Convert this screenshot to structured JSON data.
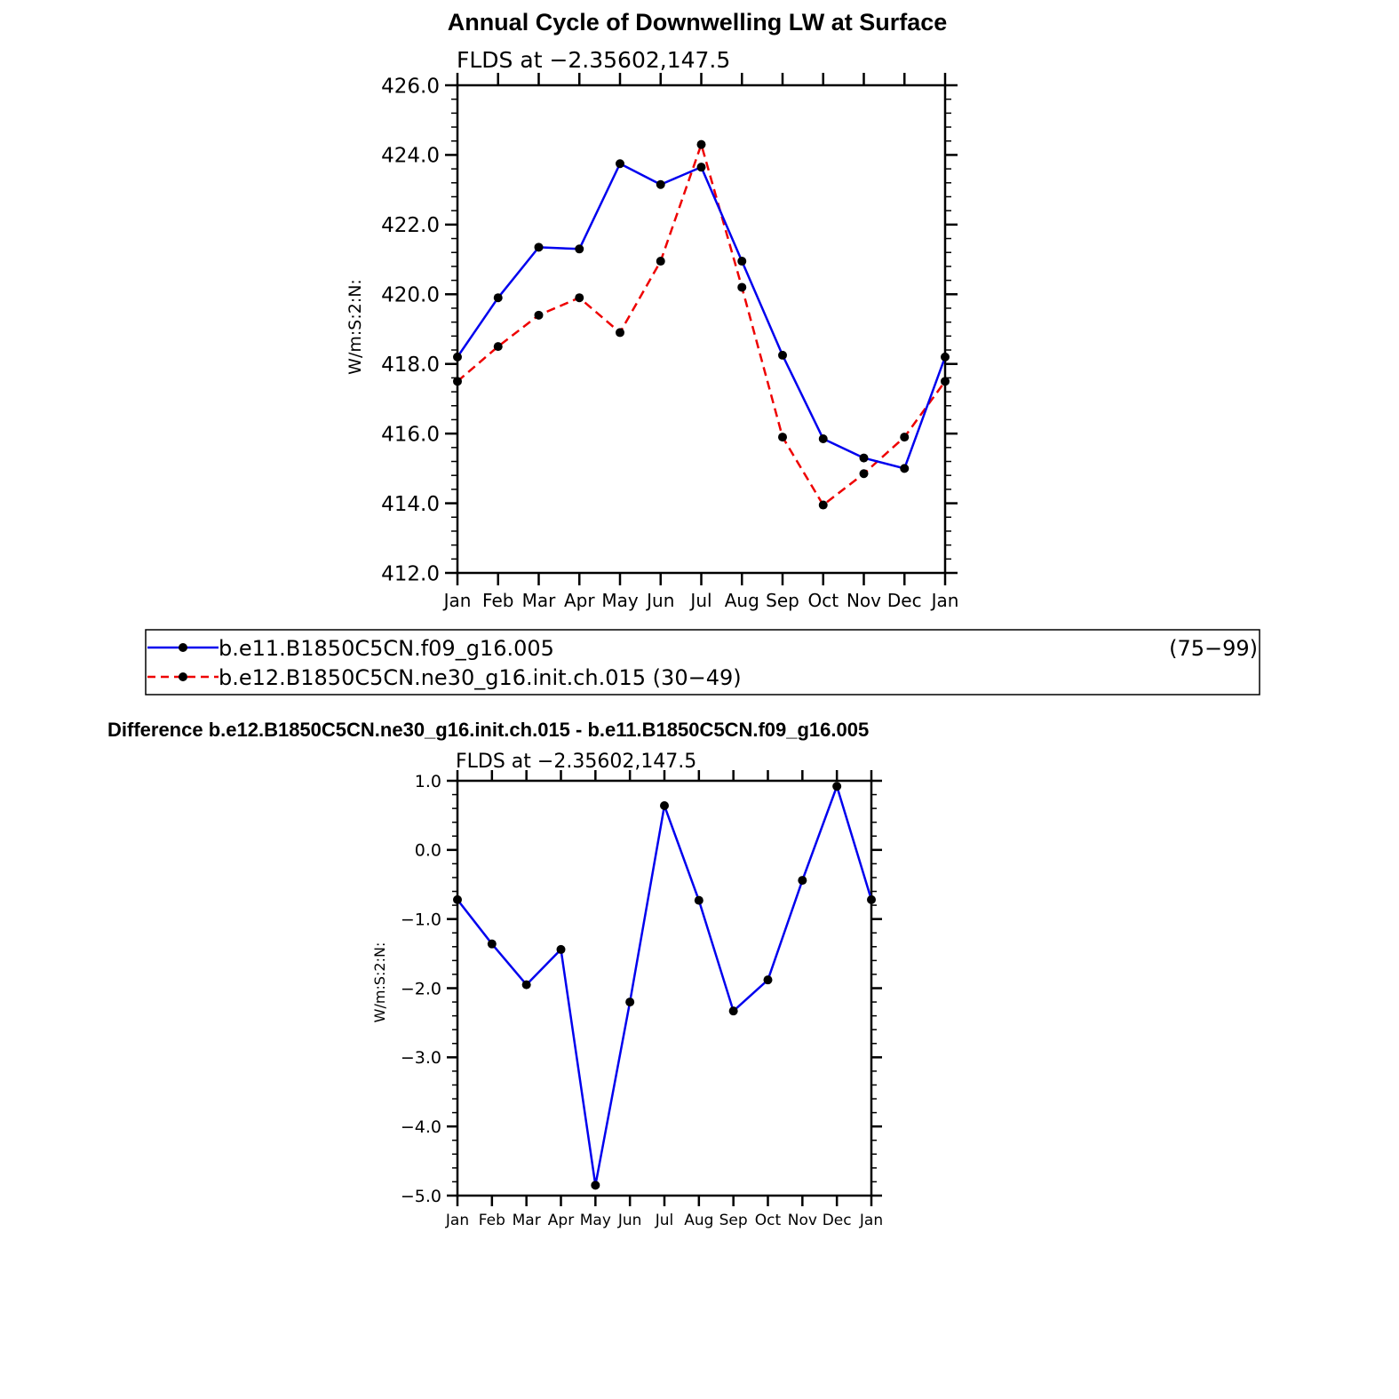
{
  "charts": {
    "top": {
      "title": "Annual Cycle of Downwelling LW at Surface",
      "subtitle": "FLDS at −2.35602,147.5",
      "ylabel": "W/m:S:2:N:"
    },
    "bottom": {
      "title": "Difference b.e12.B1850C5CN.ne30_g16.init.ch.015 - b.e11.B1850C5CN.f09_g16.005",
      "subtitle": "FLDS at −2.35602,147.5",
      "ylabel": "W/m:S:2:N:"
    }
  },
  "legend": {
    "series1_label": "b.e11.B1850C5CN.f09_g16.005",
    "series1_years": "(75−99)",
    "series2_label": "b.e12.B1850C5CN.ne30_g16.init.ch.015 (30−49)"
  },
  "chart_data": [
    {
      "type": "line",
      "title": "Annual Cycle of Downwelling LW at Surface",
      "subtitle": "FLDS at −2.35602,147.5",
      "xlabel": "",
      "ylabel": "W/m:S:2:N:",
      "categories": [
        "Jan",
        "Feb",
        "Mar",
        "Apr",
        "May",
        "Jun",
        "Jul",
        "Aug",
        "Sep",
        "Oct",
        "Nov",
        "Dec",
        "Jan"
      ],
      "ylim": [
        412.0,
        426.0
      ],
      "yticks": [
        "412.0",
        "414.0",
        "416.0",
        "418.0",
        "420.0",
        "422.0",
        "424.0",
        "426.0"
      ],
      "grid": false,
      "legend_position": "below",
      "series": [
        {
          "name": "b.e11.B1850C5CN.f09_g16.005 (75−99)",
          "color": "#0000ee",
          "dash": "solid",
          "values": [
            418.2,
            419.9,
            421.35,
            421.3,
            423.75,
            423.15,
            423.65,
            420.95,
            418.25,
            415.85,
            415.3,
            415.0,
            418.2
          ]
        },
        {
          "name": "b.e12.B1850C5CN.ne30_g16.init.ch.015 (30−49)",
          "color": "#ee0000",
          "dash": "dashed",
          "values": [
            417.5,
            418.5,
            419.4,
            419.9,
            418.9,
            420.95,
            424.3,
            420.2,
            415.9,
            413.95,
            414.85,
            415.9,
            417.5
          ]
        }
      ]
    },
    {
      "type": "line",
      "title": "Difference b.e12.B1850C5CN.ne30_g16.init.ch.015 - b.e11.B1850C5CN.f09_g16.005",
      "subtitle": "FLDS at −2.35602,147.5",
      "xlabel": "",
      "ylabel": "W/m:S:2:N:",
      "categories": [
        "Jan",
        "Feb",
        "Mar",
        "Apr",
        "May",
        "Jun",
        "Jul",
        "Aug",
        "Sep",
        "Oct",
        "Nov",
        "Dec",
        "Jan"
      ],
      "ylim": [
        -5.0,
        1.0
      ],
      "yticks": [
        "−5.0",
        "−4.0",
        "−3.0",
        "−2.0",
        "−1.0",
        "0.0",
        "1.0"
      ],
      "grid": false,
      "series": [
        {
          "color": "#0000ee",
          "dash": "solid",
          "values": [
            -0.72,
            -1.36,
            -1.95,
            -1.44,
            -4.85,
            -2.2,
            0.64,
            -0.73,
            -2.33,
            -1.88,
            -0.44,
            0.92,
            -0.72
          ]
        }
      ]
    }
  ]
}
